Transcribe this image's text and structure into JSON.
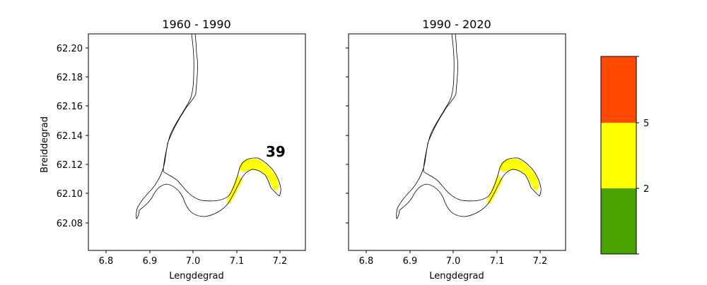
{
  "panels": [
    {
      "title": "1960 - 1990",
      "xlabel": "Lengdegrad",
      "ylabel": "Breiddegrad",
      "annotation": "39",
      "x_ticks": [
        "6.8",
        "6.9",
        "7.0",
        "7.1",
        "7.2"
      ],
      "y_ticks": [
        "62.20",
        "62.18",
        "62.16",
        "62.14",
        "62.12",
        "62.10",
        "62.08"
      ]
    },
    {
      "title": "1990 - 2020",
      "xlabel": "Lengdegrad",
      "ylabel": "",
      "annotation": "",
      "x_ticks": [
        "6.8",
        "6.9",
        "7.0",
        "7.1",
        "7.2"
      ],
      "y_ticks": []
    }
  ],
  "colorbar": {
    "tick_labels": [
      "5",
      "2"
    ],
    "colors": {
      "high": "#ff4a00",
      "mid": "#ffff00",
      "low": "#4aa200"
    }
  },
  "zone_color": "#ffff00"
}
